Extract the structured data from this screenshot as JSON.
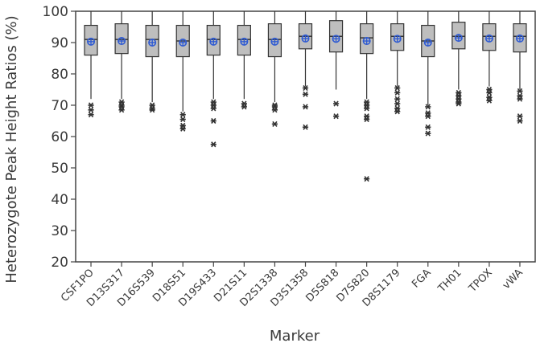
{
  "chart_data": {
    "type": "box",
    "title": "",
    "xlabel": "Marker",
    "ylabel": "Heterozygote Peak Height Ratios (%)",
    "ylim": [
      20,
      100
    ],
    "yticks": [
      20,
      30,
      40,
      50,
      60,
      70,
      80,
      90,
      100
    ],
    "grid": false,
    "legend": "none",
    "categories": [
      "CSF1PO",
      "D13S317",
      "D16S539",
      "D18S51",
      "D19S433",
      "D21S11",
      "D2S1338",
      "D3S1358",
      "D5S818",
      "D7S820",
      "D8S1179",
      "FGA",
      "TH01",
      "TPOX",
      "vWA"
    ],
    "boxes": [
      {
        "whisker_low": 72,
        "q1": 86,
        "median": 91,
        "q3": 95.5,
        "whisker_high": 100,
        "mean": 90.3,
        "outliers": [
          70,
          68.5,
          67
        ]
      },
      {
        "whisker_low": 72,
        "q1": 86.5,
        "median": 91,
        "q3": 96,
        "whisker_high": 100,
        "mean": 90.5,
        "outliers": [
          71,
          70,
          69.5,
          68.5
        ]
      },
      {
        "whisker_low": 71,
        "q1": 85.5,
        "median": 91,
        "q3": 95.5,
        "whisker_high": 100,
        "mean": 90,
        "outliers": [
          70,
          69,
          68.5
        ]
      },
      {
        "whisker_low": 68,
        "q1": 85.5,
        "median": 90.5,
        "q3": 95.5,
        "whisker_high": 100,
        "mean": 90,
        "outliers": [
          67,
          65.5,
          63.5,
          62.5
        ]
      },
      {
        "whisker_low": 72,
        "q1": 86,
        "median": 91,
        "q3": 95.5,
        "whisker_high": 100,
        "mean": 90.3,
        "outliers": [
          71,
          70,
          69,
          65,
          57.5
        ]
      },
      {
        "whisker_low": 72,
        "q1": 86,
        "median": 91,
        "q3": 95.5,
        "whisker_high": 100,
        "mean": 90.3,
        "outliers": [
          70.5,
          69.5
        ]
      },
      {
        "whisker_low": 71,
        "q1": 85.5,
        "median": 91,
        "q3": 96,
        "whisker_high": 100,
        "mean": 90.3,
        "outliers": [
          70,
          69.5,
          68.5,
          64
        ]
      },
      {
        "whisker_low": 76,
        "q1": 88,
        "median": 92,
        "q3": 96,
        "whisker_high": 100,
        "mean": 91.3,
        "outliers": [
          75.5,
          73.5,
          69.5,
          63
        ]
      },
      {
        "whisker_low": 75,
        "q1": 87,
        "median": 92,
        "q3": 97,
        "whisker_high": 100,
        "mean": 91.2,
        "outliers": [
          70.5,
          66.5
        ]
      },
      {
        "whisker_low": 72,
        "q1": 86.5,
        "median": 91.5,
        "q3": 96,
        "whisker_high": 100,
        "mean": 90.5,
        "outliers": [
          71,
          70,
          69,
          66.5,
          65.5,
          46.5
        ]
      },
      {
        "whisker_low": 76,
        "q1": 87.5,
        "median": 92,
        "q3": 96,
        "whisker_high": 100,
        "mean": 91.2,
        "outliers": [
          75.5,
          74,
          72,
          70.5,
          69,
          68
        ]
      },
      {
        "whisker_low": 70,
        "q1": 85.5,
        "median": 90.5,
        "q3": 95.5,
        "whisker_high": 100,
        "mean": 90,
        "outliers": [
          69.5,
          67.5,
          66.5,
          63,
          61
        ]
      },
      {
        "whisker_low": 75,
        "q1": 88,
        "median": 92,
        "q3": 96.5,
        "whisker_high": 100,
        "mean": 91.5,
        "outliers": [
          74,
          73,
          72,
          71,
          70.5
        ]
      },
      {
        "whisker_low": 76,
        "q1": 87.5,
        "median": 92,
        "q3": 96,
        "whisker_high": 100,
        "mean": 91.3,
        "outliers": [
          75,
          74,
          72.5,
          71.5
        ]
      },
      {
        "whisker_low": 75,
        "q1": 87,
        "median": 92,
        "q3": 96,
        "whisker_high": 100,
        "mean": 91.3,
        "outliers": [
          74.5,
          73,
          72,
          66.5,
          65
        ]
      }
    ],
    "colors": {
      "box_fill": "#bebebe",
      "box_stroke": "#333333",
      "mean_marker": "#2f5bd3",
      "outlier": "#333333",
      "axis": "#444444"
    }
  }
}
